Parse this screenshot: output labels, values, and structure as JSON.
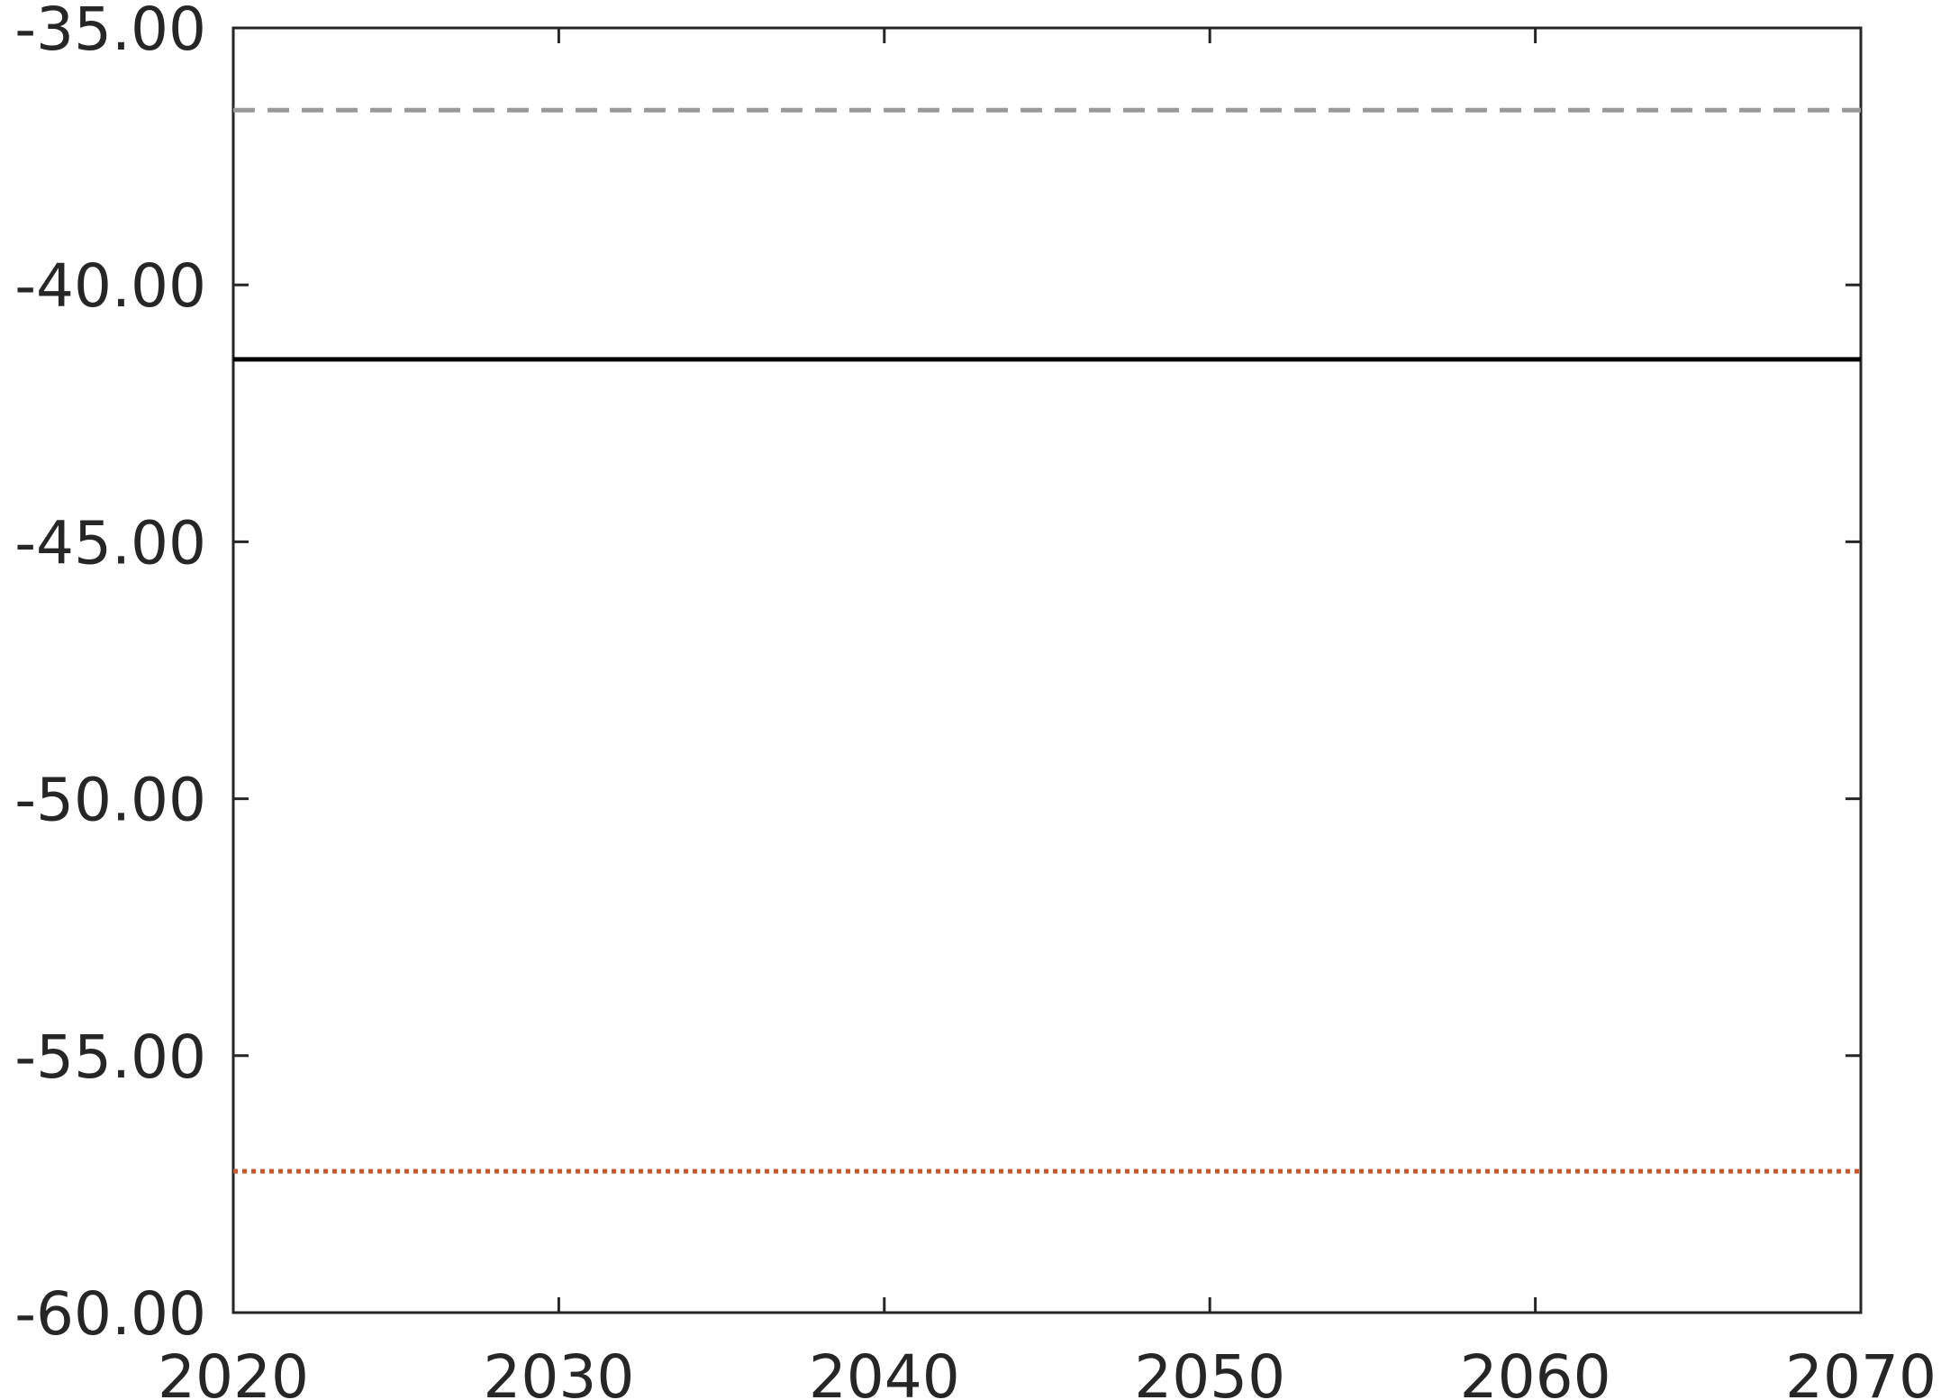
{
  "chart_data": {
    "type": "line",
    "title": "",
    "xlabel": "",
    "ylabel": "",
    "xlim": [
      2020,
      2070
    ],
    "ylim": [
      -60,
      -35
    ],
    "x_ticks": [
      "2020",
      "2030",
      "2040",
      "2050",
      "2060",
      "2070"
    ],
    "y_ticks": [
      "-35.00",
      "-40.00",
      "-45.00",
      "-50.00",
      "-55.00",
      "-60.00"
    ],
    "grid": false,
    "series": [
      {
        "x": [
          2020,
          2070
        ],
        "values": [
          -36.6,
          -36.6
        ],
        "color": "#999999",
        "style": "dashed"
      },
      {
        "x": [
          2020,
          2070
        ],
        "values": [
          -41.45,
          -41.45
        ],
        "color": "#000000",
        "style": "solid"
      },
      {
        "x": [
          2020,
          2070
        ],
        "values": [
          -57.25,
          -57.25
        ],
        "color": "#D95319",
        "style": "dotted"
      }
    ]
  }
}
